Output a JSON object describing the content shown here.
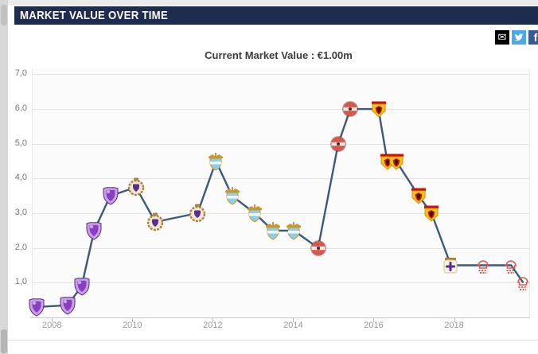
{
  "header": {
    "title": "MARKET VALUE OVER TIME"
  },
  "share": {
    "email": {
      "icon": "email-share-icon",
      "bg": "#000000",
      "glyph": "✉"
    },
    "twitter": {
      "icon": "twitter-share-icon",
      "bg": "#4da7e8"
    },
    "facebook": {
      "icon": "facebook-share-icon",
      "bg": "#3a5a98",
      "glyph": "f"
    }
  },
  "chart_data": {
    "type": "line",
    "title": "Current Market Value : €1.00m",
    "value_unit": "€m",
    "xlabel": "",
    "ylabel": "",
    "x_ticks": [
      "2008",
      "2010",
      "2012",
      "2014",
      "2016",
      "2018"
    ],
    "y_ticks": [
      "7,0",
      "6,0",
      "5,0",
      "4,0",
      "3,0",
      "2,0",
      "1,0"
    ],
    "xlim": [
      2007.5,
      2019.85
    ],
    "ylim": [
      0,
      7.17
    ],
    "grid": true,
    "legend": "none",
    "line_color": "#3a597c",
    "series_name": "Market value",
    "points": [
      {
        "x": 2007.6,
        "y": 0.3,
        "club": "club_a"
      },
      {
        "x": 2008.37,
        "y": 0.35,
        "club": "club_a"
      },
      {
        "x": 2008.72,
        "y": 0.9,
        "club": "club_a"
      },
      {
        "x": 2009.03,
        "y": 2.5,
        "club": "club_a"
      },
      {
        "x": 2009.43,
        "y": 3.5,
        "club": "club_a"
      },
      {
        "x": 2010.07,
        "y": 3.75,
        "club": "club_b"
      },
      {
        "x": 2010.55,
        "y": 2.75,
        "club": "club_b"
      },
      {
        "x": 2011.6,
        "y": 3.0,
        "club": "club_b"
      },
      {
        "x": 2012.06,
        "y": 4.5,
        "club": "club_c"
      },
      {
        "x": 2012.46,
        "y": 3.5,
        "club": "club_c"
      },
      {
        "x": 2013.02,
        "y": 3.0,
        "club": "club_c"
      },
      {
        "x": 2013.48,
        "y": 2.5,
        "club": "club_c"
      },
      {
        "x": 2014.0,
        "y": 2.5,
        "club": "club_c"
      },
      {
        "x": 2014.6,
        "y": 2.0,
        "club": "club_d"
      },
      {
        "x": 2015.1,
        "y": 5.0,
        "club": "club_d"
      },
      {
        "x": 2015.4,
        "y": 6.0,
        "club": "club_d"
      },
      {
        "x": 2016.1,
        "y": 6.0,
        "club": "club_e"
      },
      {
        "x": 2016.32,
        "y": 4.5,
        "club": "club_e"
      },
      {
        "x": 2016.54,
        "y": 4.5,
        "club": "club_e"
      },
      {
        "x": 2017.1,
        "y": 3.5,
        "club": "club_e"
      },
      {
        "x": 2017.42,
        "y": 3.0,
        "club": "club_e"
      },
      {
        "x": 2017.9,
        "y": 1.5,
        "club": "club_f"
      },
      {
        "x": 2018.7,
        "y": 1.5,
        "club": "club_g"
      },
      {
        "x": 2019.4,
        "y": 1.5,
        "club": "club_g"
      },
      {
        "x": 2019.7,
        "y": 1.0,
        "club": "club_g"
      }
    ],
    "clubs": {
      "club_a": {
        "icon": "purple-shield-crest-icon",
        "shape": "shield",
        "colors": [
          "#c9a0e8",
          "#8a3fc0",
          "#5a2a85"
        ]
      },
      "club_b": {
        "icon": "gold-ornate-shield-crest-icon",
        "shape": "ornate",
        "colors": [
          "#a98440",
          "#f0e6d2",
          "#5b2d8e"
        ]
      },
      "club_c": {
        "icon": "sky-blue-eagle-crest-icon",
        "shape": "eagle",
        "colors": [
          "#8ecfe8",
          "#c9972f",
          "#ffffff"
        ]
      },
      "club_d": {
        "icon": "red-roundel-crest-icon",
        "shape": "circle",
        "colors": [
          "#d4584e",
          "#f3e9e0",
          "#5a2222"
        ]
      },
      "club_e": {
        "icon": "yellow-red-hart-crest-icon",
        "shape": "pentagon",
        "colors": [
          "#f5c518",
          "#cc1010",
          "#1a1a1a"
        ]
      },
      "club_f": {
        "icon": "white-purple-cross-crest-icon",
        "shape": "cross",
        "colors": [
          "#f7f2e2",
          "#5b2d8e",
          "#b07a3a"
        ]
      },
      "club_g": {
        "icon": "red-outline-crest-icon",
        "shape": "outline",
        "colors": [
          "#e8584f"
        ]
      }
    }
  }
}
